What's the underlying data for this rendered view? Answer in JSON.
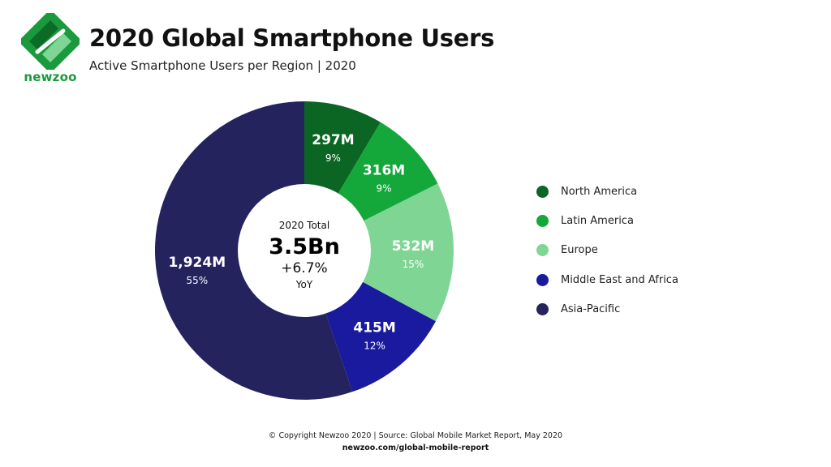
{
  "header": {
    "brand": "newzoo",
    "logo_icon": "newzoo-logo-icon",
    "title": "2020 Global Smartphone Users",
    "subtitle": "Active Smartphone Users per Region | 2020"
  },
  "chart_data": {
    "type": "pie",
    "style": "donut",
    "title": "2020 Global Smartphone Users",
    "subtitle": "Active Smartphone Users per Region | 2020",
    "legend_position": "right",
    "slices": [
      {
        "name": "North America",
        "value": 297,
        "value_label": "297M",
        "percent_label": "9%",
        "color": "#0b6623"
      },
      {
        "name": "Latin America",
        "value": 316,
        "value_label": "316M",
        "percent_label": "9%",
        "color": "#14a83b"
      },
      {
        "name": "Europe",
        "value": 532,
        "value_label": "532M",
        "percent_label": "15%",
        "color": "#7fd694"
      },
      {
        "name": "Middle East and Africa",
        "value": 415,
        "value_label": "415M",
        "percent_label": "12%",
        "color": "#1a1a9e"
      },
      {
        "name": "Asia-Pacific",
        "value": 1924,
        "value_label": "1,924M",
        "percent_label": "55%",
        "color": "#24235e"
      }
    ],
    "center": {
      "title": "2020 Total",
      "total": "3.5Bn",
      "growth": "+6.7%",
      "period": "YoY"
    }
  },
  "footer": {
    "copyright": "© Copyright Newzoo 2020 | Source: Global Mobile Market Report, May 2020",
    "url": "newzoo.com/global-mobile-report"
  }
}
